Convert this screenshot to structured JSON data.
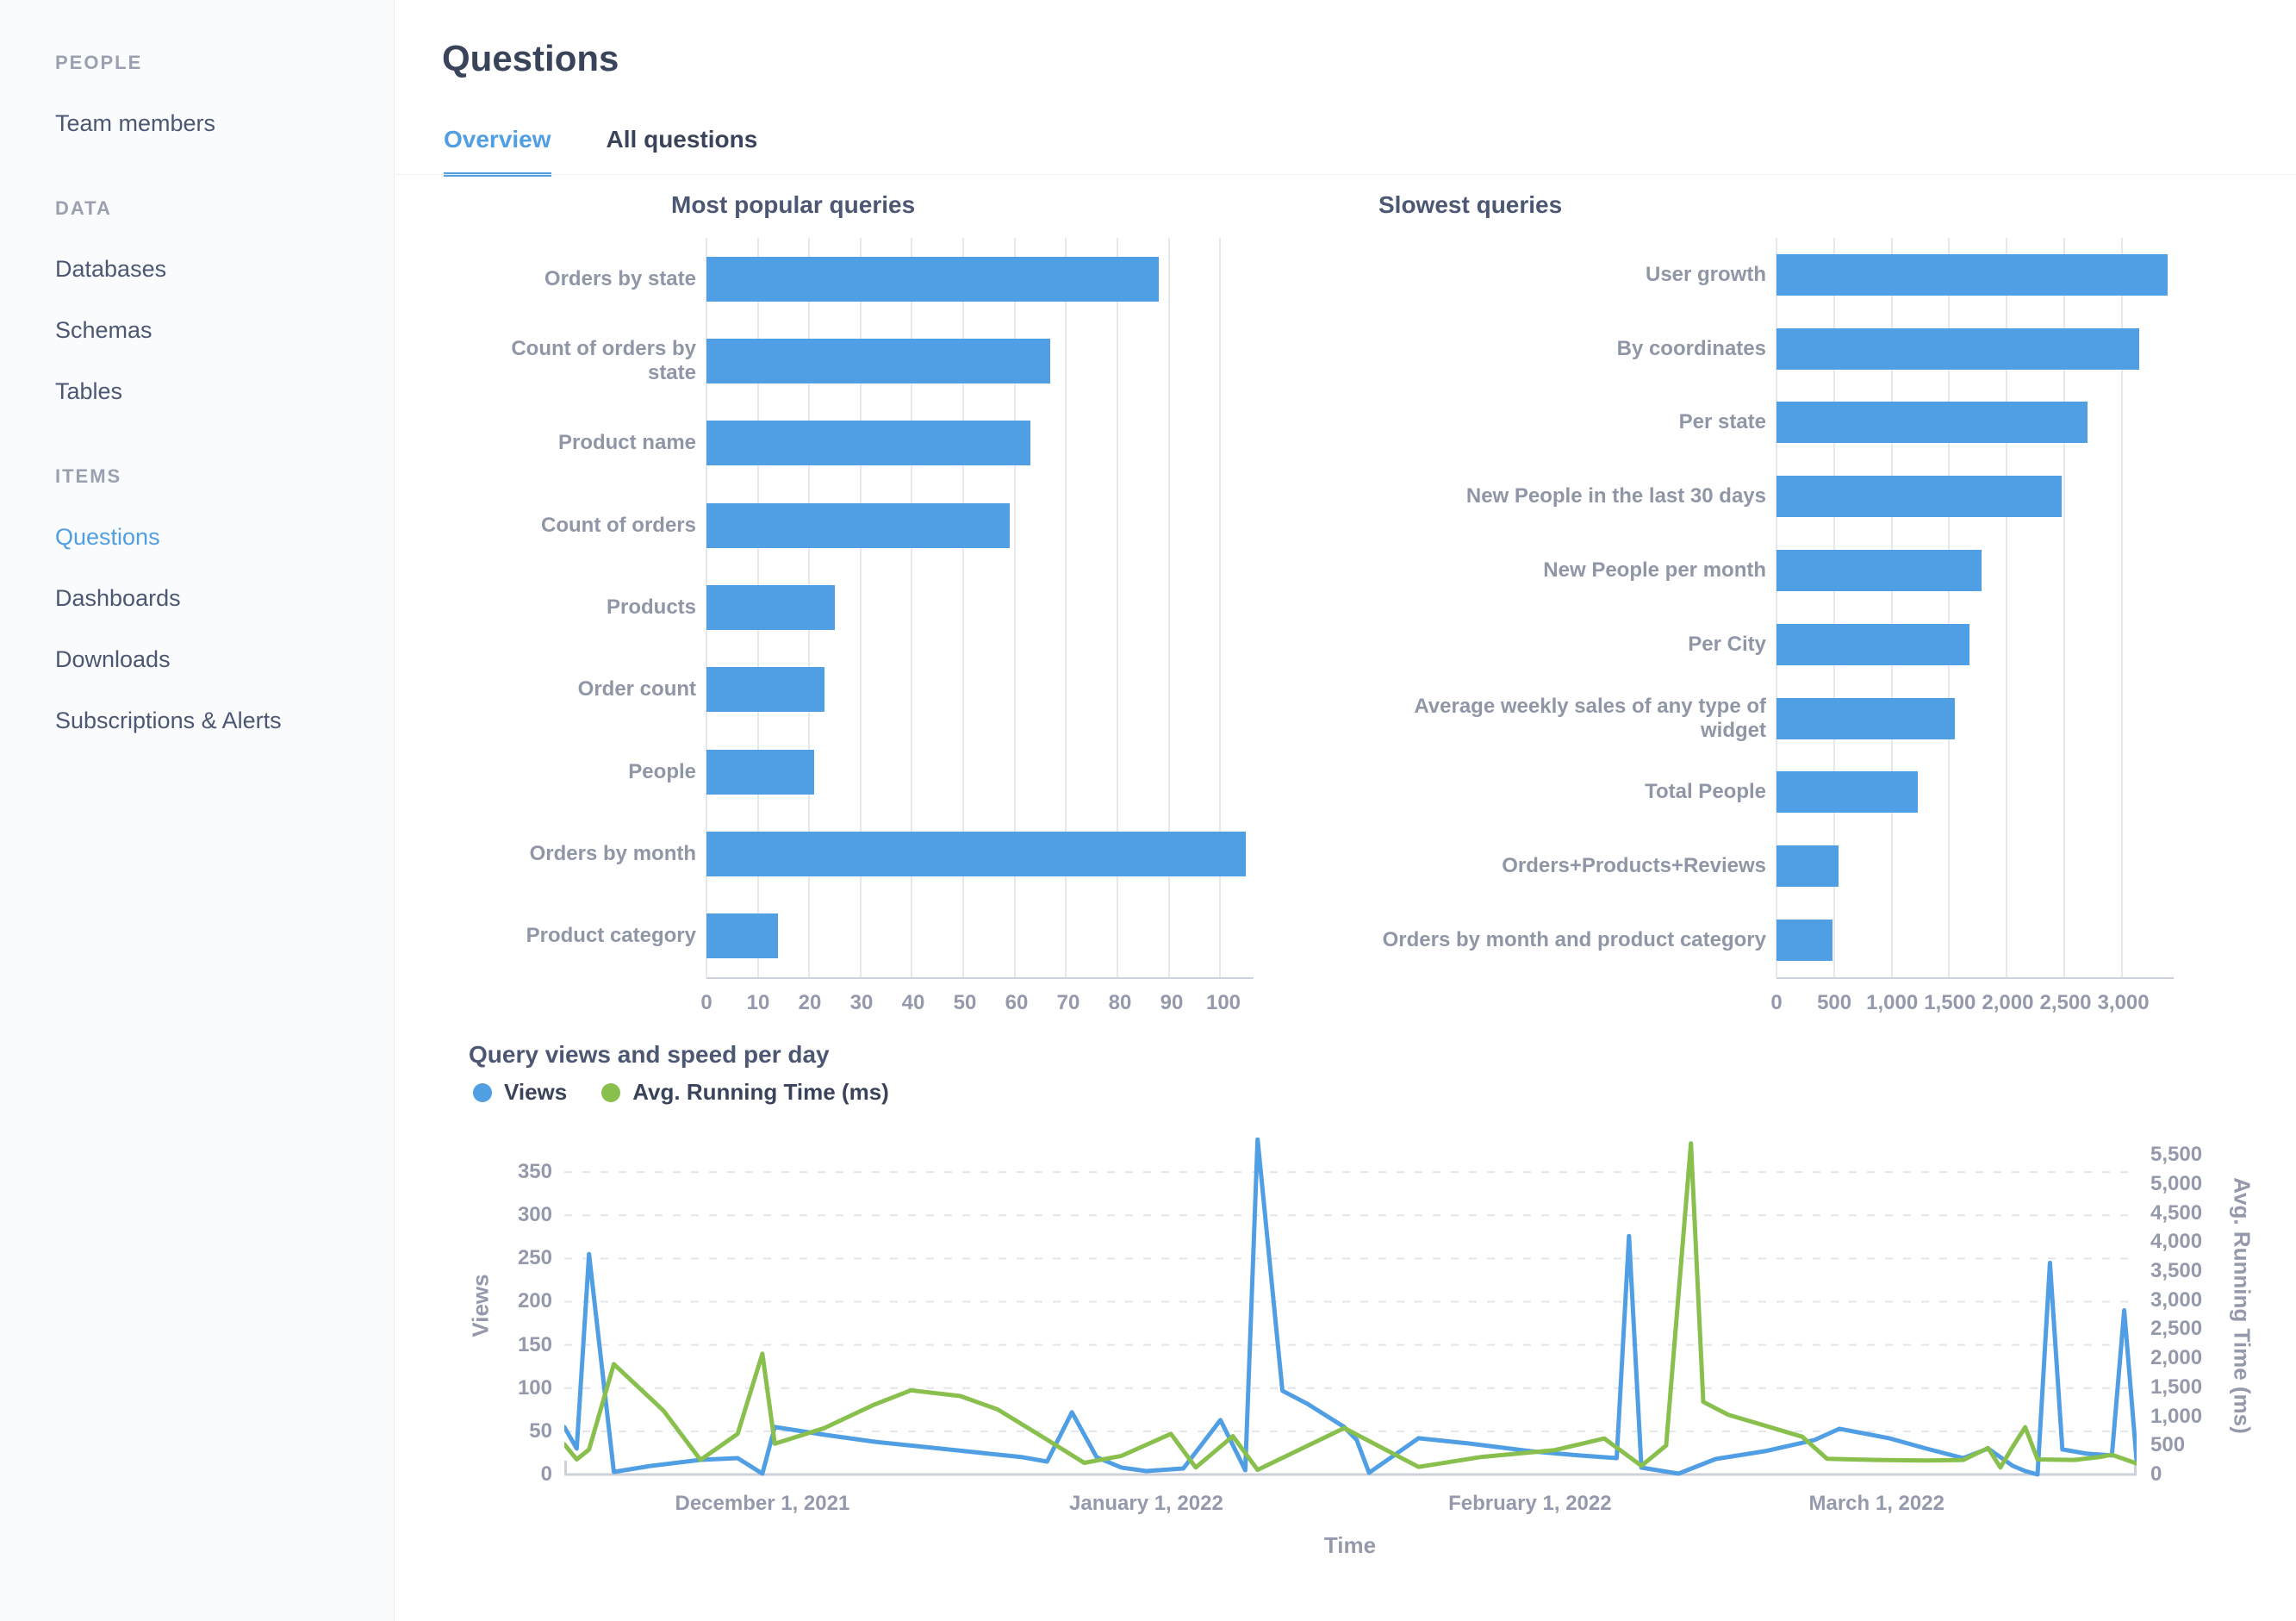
{
  "sidebar": {
    "sections": [
      {
        "title": "PEOPLE",
        "items": [
          {
            "label": "Team members",
            "active": false
          }
        ]
      },
      {
        "title": "DATA",
        "items": [
          {
            "label": "Databases",
            "active": false
          },
          {
            "label": "Schemas",
            "active": false
          },
          {
            "label": "Tables",
            "active": false
          }
        ]
      },
      {
        "title": "ITEMS",
        "items": [
          {
            "label": "Questions",
            "active": true
          },
          {
            "label": "Dashboards",
            "active": false
          },
          {
            "label": "Downloads",
            "active": false
          },
          {
            "label": "Subscriptions & Alerts",
            "active": false
          }
        ]
      }
    ]
  },
  "header": {
    "title": "Questions",
    "tabs": [
      {
        "label": "Overview",
        "active": true
      },
      {
        "label": "All questions",
        "active": false
      }
    ]
  },
  "colors": {
    "accent": "#509EE3",
    "green": "#88BF4D",
    "label_gray": "#949AAB",
    "title_dark": "#4C5773"
  },
  "chart_data": [
    {
      "type": "bar",
      "title": "Most popular queries",
      "orientation": "horizontal",
      "categories": [
        "Orders by state",
        "Count of orders by state",
        "Product name",
        "Count of orders",
        "Products",
        "Order count",
        "People",
        "Orders by month",
        "Product category"
      ],
      "values": [
        88,
        67,
        63,
        59,
        25,
        23,
        21,
        105,
        14
      ],
      "x_ticks": [
        0,
        10,
        20,
        30,
        40,
        50,
        60,
        70,
        80,
        90,
        100
      ],
      "x_layout_max": 106.5,
      "bar_color": "#509EE3",
      "xlabel": "",
      "ylabel": "",
      "grid": "vertical"
    },
    {
      "type": "bar",
      "title": "Slowest queries",
      "orientation": "horizontal",
      "categories": [
        "User growth",
        "By coordinates",
        "Per state",
        "New People in the last 30 days",
        "New People per month",
        "Per City",
        "Average weekly sales of any type of widget",
        "Total People",
        "Orders+Products+Reviews",
        "Orders by month and product category"
      ],
      "values": [
        3400,
        3150,
        2700,
        2480,
        1780,
        1680,
        1550,
        1230,
        540,
        490
      ],
      "x_ticks": [
        0,
        500,
        1000,
        1500,
        2000,
        2500,
        3000
      ],
      "x_layout_max": 3450,
      "bar_color": "#509EE3",
      "xlabel": "",
      "ylabel": "",
      "grid": "vertical"
    },
    {
      "type": "line",
      "title": "Query views and speed per day",
      "xlabel": "Time",
      "x_range": [
        "2021-11-15",
        "2022-03-22"
      ],
      "x_ticks": [
        {
          "date": "2021-12-01",
          "label": "December 1, 2021"
        },
        {
          "date": "2022-01-01",
          "label": "January 1, 2022"
        },
        {
          "date": "2022-02-01",
          "label": "February 1, 2022"
        },
        {
          "date": "2022-03-01",
          "label": "March 1, 2022"
        }
      ],
      "left_axis": {
        "label": "Views",
        "ticks": [
          0,
          50,
          100,
          150,
          200,
          250,
          300,
          350
        ],
        "layout_max": 390
      },
      "right_axis": {
        "label": "Avg. Running Time (ms)",
        "ticks": [
          0,
          500,
          1000,
          1500,
          2000,
          2500,
          3000,
          3500,
          4000,
          4500,
          5000,
          5500
        ],
        "layout_max": 5800
      },
      "grid": "dashed-horizontal",
      "legend_position": "top-left",
      "series": [
        {
          "name": "Views",
          "color": "#509EE3",
          "axis": "left",
          "points": [
            [
              "2021-11-15",
              55
            ],
            [
              "2021-11-16",
              30
            ],
            [
              "2021-11-17",
              255
            ],
            [
              "2021-11-19",
              3
            ],
            [
              "2021-11-22",
              10
            ],
            [
              "2021-11-26",
              17
            ],
            [
              "2021-11-29",
              19
            ],
            [
              "2021-12-01",
              1
            ],
            [
              "2021-12-02",
              55
            ],
            [
              "2021-12-06",
              46
            ],
            [
              "2021-12-10",
              38
            ],
            [
              "2021-12-14",
              32
            ],
            [
              "2021-12-18",
              26
            ],
            [
              "2021-12-22",
              20
            ],
            [
              "2021-12-24",
              15
            ],
            [
              "2021-12-26",
              72
            ],
            [
              "2021-12-28",
              20
            ],
            [
              "2021-12-30",
              8
            ],
            [
              "2022-01-01",
              4
            ],
            [
              "2022-01-04",
              7
            ],
            [
              "2022-01-07",
              63
            ],
            [
              "2022-01-09",
              5
            ],
            [
              "2022-01-10",
              388
            ],
            [
              "2022-01-12",
              97
            ],
            [
              "2022-01-14",
              82
            ],
            [
              "2022-01-17",
              55
            ],
            [
              "2022-01-18",
              40
            ],
            [
              "2022-01-19",
              2
            ],
            [
              "2022-01-23",
              42
            ],
            [
              "2022-01-27",
              36
            ],
            [
              "2022-02-01",
              27
            ],
            [
              "2022-02-05",
              22
            ],
            [
              "2022-02-08",
              19
            ],
            [
              "2022-02-09",
              276
            ],
            [
              "2022-02-10",
              8
            ],
            [
              "2022-02-13",
              1
            ],
            [
              "2022-02-16",
              18
            ],
            [
              "2022-02-20",
              27
            ],
            [
              "2022-02-24",
              40
            ],
            [
              "2022-02-26",
              53
            ],
            [
              "2022-03-02",
              42
            ],
            [
              "2022-03-05",
              30
            ],
            [
              "2022-03-08",
              19
            ],
            [
              "2022-03-10",
              30
            ],
            [
              "2022-03-12",
              10
            ],
            [
              "2022-03-13",
              4
            ],
            [
              "2022-03-14",
              0
            ],
            [
              "2022-03-15",
              245
            ],
            [
              "2022-03-16",
              29
            ],
            [
              "2022-03-18",
              24
            ],
            [
              "2022-03-20",
              22
            ],
            [
              "2022-03-21",
              190
            ],
            [
              "2022-03-22",
              16
            ]
          ]
        },
        {
          "name": "Avg. Running Time (ms)",
          "color": "#88BF4D",
          "axis": "right",
          "points": [
            [
              "2021-11-15",
              520
            ],
            [
              "2021-11-16",
              260
            ],
            [
              "2021-11-17",
              430
            ],
            [
              "2021-11-19",
              1900
            ],
            [
              "2021-11-23",
              1100
            ],
            [
              "2021-11-26",
              250
            ],
            [
              "2021-11-29",
              700
            ],
            [
              "2021-12-01",
              2080
            ],
            [
              "2021-12-02",
              530
            ],
            [
              "2021-12-06",
              800
            ],
            [
              "2021-12-10",
              1200
            ],
            [
              "2021-12-13",
              1450
            ],
            [
              "2021-12-17",
              1350
            ],
            [
              "2021-12-20",
              1120
            ],
            [
              "2021-12-24",
              600
            ],
            [
              "2021-12-27",
              200
            ],
            [
              "2021-12-30",
              320
            ],
            [
              "2022-01-03",
              700
            ],
            [
              "2022-01-05",
              120
            ],
            [
              "2022-01-08",
              660
            ],
            [
              "2022-01-10",
              80
            ],
            [
              "2022-01-17",
              800
            ],
            [
              "2022-01-23",
              130
            ],
            [
              "2022-01-28",
              300
            ],
            [
              "2022-02-03",
              420
            ],
            [
              "2022-02-07",
              620
            ],
            [
              "2022-02-10",
              150
            ],
            [
              "2022-02-12",
              500
            ],
            [
              "2022-02-14",
              5700
            ],
            [
              "2022-02-15",
              1250
            ],
            [
              "2022-02-17",
              1030
            ],
            [
              "2022-02-23",
              650
            ],
            [
              "2022-02-25",
              270
            ],
            [
              "2022-03-01",
              250
            ],
            [
              "2022-03-05",
              240
            ],
            [
              "2022-03-08",
              250
            ],
            [
              "2022-03-10",
              455
            ],
            [
              "2022-03-11",
              120
            ],
            [
              "2022-03-12",
              480
            ],
            [
              "2022-03-13",
              815
            ],
            [
              "2022-03-14",
              260
            ],
            [
              "2022-03-17",
              250
            ],
            [
              "2022-03-19",
              300
            ],
            [
              "2022-03-20",
              340
            ],
            [
              "2022-03-22",
              190
            ]
          ]
        }
      ]
    }
  ]
}
